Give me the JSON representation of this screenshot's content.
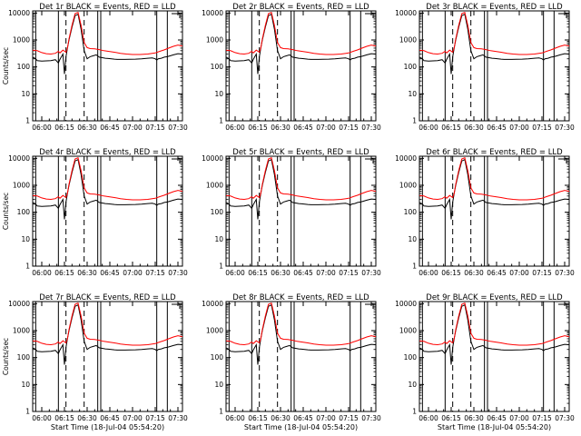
{
  "chart_data": [
    {
      "type": "line",
      "title": "Det 1r BLACK = Events, RED = LLD",
      "xlabel": "",
      "ylabel": "Counts/sec",
      "show_xlabel": false,
      "show_ylabel": true
    },
    {
      "type": "line",
      "title": "Det 2r BLACK = Events, RED = LLD",
      "xlabel": "",
      "ylabel": "",
      "show_xlabel": false,
      "show_ylabel": false
    },
    {
      "type": "line",
      "title": "Det 3r BLACK = Events, RED = LLD",
      "xlabel": "",
      "ylabel": "",
      "show_xlabel": false,
      "show_ylabel": false
    },
    {
      "type": "line",
      "title": "Det 4r BLACK = Events, RED = LLD",
      "xlabel": "",
      "ylabel": "Counts/sec",
      "show_xlabel": false,
      "show_ylabel": true
    },
    {
      "type": "line",
      "title": "Det 5r BLACK = Events, RED = LLD",
      "xlabel": "",
      "ylabel": "",
      "show_xlabel": false,
      "show_ylabel": false
    },
    {
      "type": "line",
      "title": "Det 6r BLACK = Events, RED = LLD",
      "xlabel": "",
      "ylabel": "",
      "show_xlabel": false,
      "show_ylabel": false
    },
    {
      "type": "line",
      "title": "Det 7r BLACK = Events, RED = LLD",
      "xlabel": "Start Time (18-Jul-04 05:54:20)",
      "ylabel": "Counts/sec",
      "show_xlabel": true,
      "show_ylabel": true
    },
    {
      "type": "line",
      "title": "Det 8r BLACK = Events, RED = LLD",
      "xlabel": "Start Time (18-Jul-04 05:54:20)",
      "ylabel": "",
      "show_xlabel": true,
      "show_ylabel": false
    },
    {
      "type": "line",
      "title": "Det 9r BLACK = Events, RED = LLD",
      "xlabel": "Start Time (18-Jul-04 05:54:20)",
      "ylabel": "",
      "show_xlabel": true,
      "show_ylabel": false
    }
  ],
  "shared": {
    "x_ticks": [
      "06:00",
      "06:15",
      "06:30",
      "06:45",
      "07:00",
      "07:15",
      "07:30"
    ],
    "x_tick_minutes": [
      0,
      15,
      30,
      45,
      60,
      75,
      90
    ],
    "xlim_minutes": [
      -6,
      93
    ],
    "y_scale": "log",
    "ylim": [
      1,
      12000
    ],
    "y_ticks": [
      1,
      10,
      100,
      1000,
      10000
    ],
    "y_tick_labels": [
      "1",
      "10",
      "100",
      "1000",
      "10000"
    ],
    "solid_vlines_minutes": [
      -4,
      11,
      37,
      39,
      76,
      83
    ],
    "dashed_vlines_minutes": [
      16,
      28
    ],
    "colors": {
      "events": "#000000",
      "lld": "#ff0000",
      "axes": "#000000",
      "background": "#ffffff"
    },
    "series": [
      {
        "name": "Events",
        "color": "#000000",
        "x": [
          -6,
          -4,
          -3,
          0,
          3,
          6,
          9,
          11,
          12,
          14,
          15,
          16,
          17,
          18,
          20,
          22,
          24,
          26,
          28,
          30,
          32,
          34,
          36,
          38,
          40,
          42,
          44,
          46,
          48,
          50,
          52,
          55,
          58,
          62,
          66,
          70,
          73,
          75,
          76,
          77,
          79,
          81,
          83,
          85,
          87,
          90,
          93
        ],
        "y": [
          230,
          200,
          170,
          165,
          168,
          172,
          185,
          140,
          190,
          300,
          55,
          240,
          500,
          1000,
          3000,
          8000,
          9000,
          2500,
          400,
          200,
          240,
          260,
          280,
          230,
          220,
          210,
          205,
          200,
          195,
          190,
          190,
          190,
          192,
          195,
          200,
          210,
          215,
          200,
          180,
          200,
          210,
          230,
          240,
          260,
          280,
          310,
          300
        ]
      },
      {
        "name": "LLD",
        "color": "#ff0000",
        "x": [
          -6,
          -3,
          0,
          3,
          6,
          9,
          11,
          12,
          14,
          16,
          17,
          18,
          20,
          22,
          24,
          26,
          28,
          30,
          32,
          35,
          38,
          41,
          44,
          48,
          52,
          56,
          60,
          65,
          70,
          75,
          78,
          81,
          84,
          87,
          90,
          93
        ],
        "y": [
          420,
          400,
          340,
          310,
          300,
          320,
          380,
          330,
          420,
          350,
          500,
          1100,
          3500,
          9500,
          10500,
          3500,
          800,
          520,
          480,
          470,
          440,
          400,
          380,
          350,
          320,
          300,
          290,
          290,
          300,
          330,
          380,
          430,
          500,
          580,
          650,
          600
        ]
      }
    ]
  }
}
